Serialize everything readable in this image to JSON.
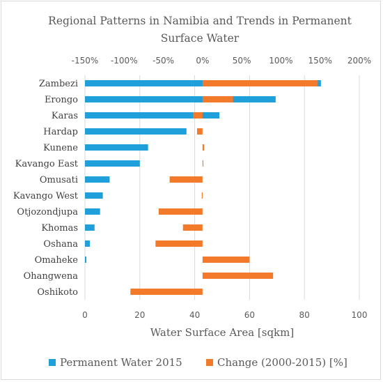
{
  "chart_data": {
    "type": "bar",
    "orientation": "horizontal",
    "title": "Regional Patterns in Namibia and Trends in Permanent Surface Water",
    "title_lines": [
      "Regional Patterns in Namibia and Trends in Permanent",
      "Surface Water"
    ],
    "categories": [
      "Zambezi",
      "Erongo",
      "Karas",
      "Hardap",
      "Kunene",
      "Kavango East",
      "Omusati",
      "Kavango West",
      "Otjozondjupa",
      "Khomas",
      "Oshana",
      "Omaheke",
      "Ohangwena",
      "Oshikoto"
    ],
    "series": [
      {
        "name": "Permanent Water 2015",
        "axis": "bottom",
        "color": "#1fa0db",
        "values": [
          86.0,
          69.5,
          49.0,
          37.0,
          23.0,
          20.0,
          9.0,
          6.5,
          5.5,
          3.5,
          1.8,
          0.5,
          0.0,
          0.0
        ]
      },
      {
        "name": "Change (2000-2015) [%]",
        "axis": "top",
        "color": "#f47a2b",
        "values": [
          147,
          39,
          -12,
          -7,
          2,
          1,
          -42,
          -1,
          -56,
          -25,
          -60,
          60,
          90,
          -92
        ]
      }
    ],
    "xlabel": "Water Surface Area [sqkm]",
    "x_bottom": {
      "min": 0,
      "max": 100,
      "ticks": [
        "0",
        "20",
        "40",
        "60",
        "80",
        "100"
      ]
    },
    "x_top": {
      "min": -150,
      "max": 200,
      "ticks": [
        "-150%",
        "-100%",
        "-50%",
        "0%",
        "50%",
        "100%",
        "150%",
        "200%"
      ]
    },
    "grid": true,
    "legend_position": "bottom"
  }
}
